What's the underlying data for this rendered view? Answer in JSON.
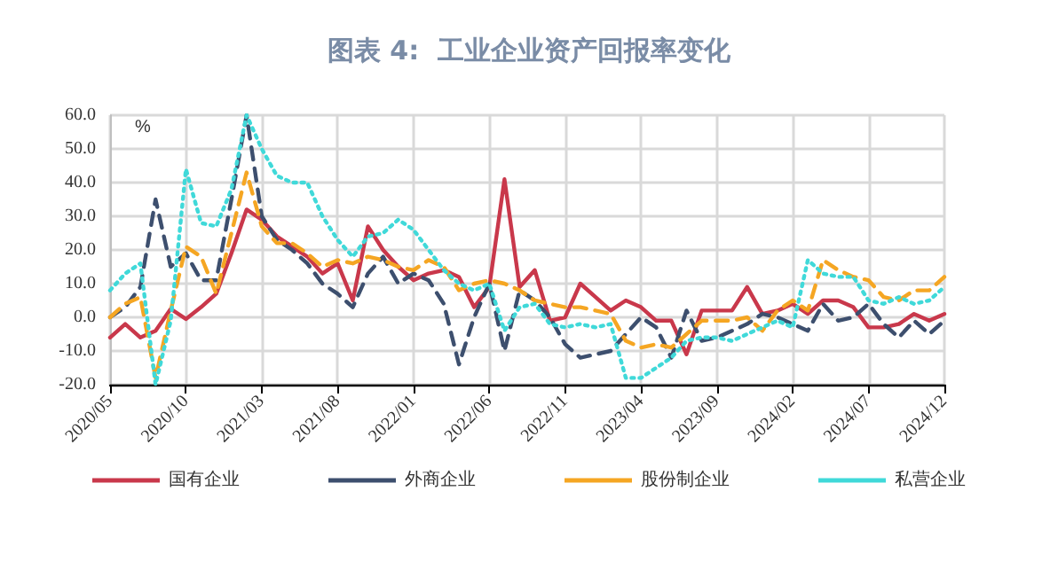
{
  "chart_data": {
    "type": "line",
    "title": "图表 4:  工业企业资产回报率变化",
    "ylabel": "%",
    "categories": [
      "2020/05",
      null,
      null,
      null,
      null,
      "2020/10",
      null,
      null,
      null,
      null,
      "2021/03",
      null,
      null,
      null,
      null,
      "2021/08",
      null,
      null,
      null,
      null,
      "2022/01",
      null,
      null,
      null,
      null,
      "2022/06",
      null,
      null,
      null,
      null,
      "2022/11",
      null,
      null,
      null,
      null,
      "2023/04",
      null,
      null,
      null,
      null,
      "2023/09",
      null,
      null,
      null,
      null,
      "2024/02",
      null,
      null,
      null,
      null,
      "2024/07",
      null,
      null,
      null,
      null,
      "2024/12"
    ],
    "series": [
      {
        "name": "国有企业",
        "color": "#c9384b",
        "line_style": "solid",
        "values": [
          -6,
          -2,
          -6,
          -4,
          2.5,
          -0.5,
          3,
          7,
          19,
          32,
          29,
          24,
          21,
          18,
          13,
          16,
          5,
          27,
          20,
          15,
          11,
          13,
          14,
          12,
          3,
          9,
          41,
          9,
          14,
          -1,
          0,
          10,
          6,
          2,
          5,
          3,
          -1,
          -1,
          -11,
          2,
          2,
          2,
          9,
          1,
          2,
          4,
          1,
          5,
          5,
          3,
          -3,
          -3,
          -2,
          1,
          -1,
          1
        ]
      },
      {
        "name": "外商企业",
        "color": "#3d4f6e",
        "line_style": "dashed",
        "values": [
          0,
          3,
          9,
          35,
          15,
          19,
          11,
          11,
          35,
          60,
          30,
          23,
          20,
          16,
          10,
          7,
          3,
          13,
          18,
          10,
          13,
          11,
          4,
          -14,
          0,
          10,
          -10,
          8,
          5,
          0,
          -8,
          -12,
          -11,
          -10,
          -5,
          0,
          -3,
          -12,
          2,
          -7,
          -6,
          -4,
          -2,
          1,
          0,
          -2,
          -4,
          4,
          -1,
          0,
          4,
          -2,
          -6,
          -1,
          -5,
          -1
        ]
      },
      {
        "name": "股份制企业",
        "color": "#f5a623",
        "line_style": "dashed",
        "values": [
          0,
          4,
          6,
          -18,
          2,
          21,
          18,
          7,
          25,
          43,
          27,
          22,
          22,
          19,
          15,
          17,
          16,
          18,
          17,
          15,
          14,
          17,
          15,
          8,
          10,
          11,
          10,
          8,
          5,
          4,
          3,
          3,
          2,
          1,
          -7,
          -9,
          -8,
          -9,
          -5,
          -1,
          -1,
          -1,
          0,
          -4,
          2,
          5,
          2,
          17,
          14,
          12,
          11,
          6,
          5,
          8,
          8,
          12
        ]
      },
      {
        "name": "私营企业",
        "color": "#40d9d9",
        "line_style": "dotted",
        "values": [
          8,
          13,
          16,
          -20,
          -1,
          44,
          28,
          27,
          38,
          60,
          50,
          42,
          40,
          40,
          30,
          23,
          18,
          24,
          25,
          29,
          26,
          20,
          14,
          10,
          8,
          10,
          -4,
          3,
          4,
          -2,
          -3,
          -2,
          -3,
          -2,
          -18,
          -18,
          -15,
          -12,
          -7,
          -6,
          -6,
          -7,
          -5,
          -3,
          -1,
          -3,
          17,
          13,
          12,
          12,
          5,
          4,
          6,
          4,
          5,
          9
        ]
      }
    ],
    "ylim": [
      -20,
      60
    ],
    "yticks": [
      {
        "value": -20,
        "label": "-20.0"
      },
      {
        "value": -10,
        "label": "-10.0"
      },
      {
        "value": 0,
        "label": "0.0"
      },
      {
        "value": 10,
        "label": "10.0"
      },
      {
        "value": 20,
        "label": "20.0"
      },
      {
        "value": 30,
        "label": "30.0"
      },
      {
        "value": 40,
        "label": "40.0"
      },
      {
        "value": 50,
        "label": "50.0"
      },
      {
        "value": 60,
        "label": "60.0"
      }
    ],
    "grid": true,
    "legend": "bottom",
    "marker": "none"
  }
}
